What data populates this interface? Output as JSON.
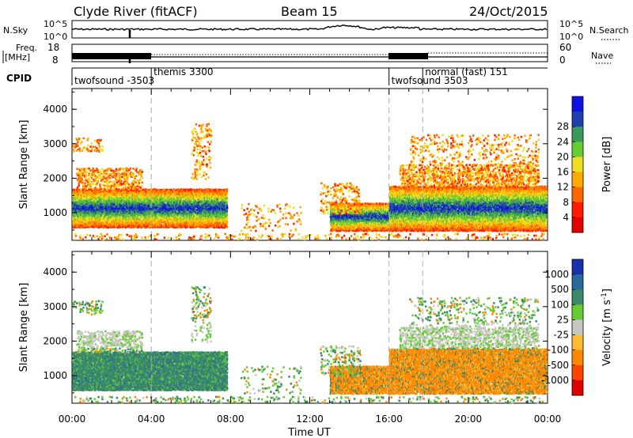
{
  "header": {
    "station": "Clyde River (fitACF)",
    "beam": "Beam 15",
    "date": "24/Oct/2015"
  },
  "top_strips": {
    "nsky_label": "N.Sky",
    "nsearch_label": "N.Search",
    "freq_label_1": "Freq.",
    "freq_label_2": "[MHz]",
    "nave_label": "Nave",
    "cpid_label": "CPID",
    "nsky_ticks_left": [
      "10^5",
      "10^0"
    ],
    "nsky_ticks_right": [
      "10^5",
      "10^0"
    ],
    "freq_ticks_left": [
      "18",
      "8"
    ],
    "nave_ticks_right": [
      "60",
      "0"
    ]
  },
  "cpid_segments": [
    {
      "label": "twofsound -3503",
      "start_hr": 0.0,
      "end_hr": 4.0
    },
    {
      "label": "themis 3300",
      "start_hr": 4.0,
      "end_hr": 16.0
    },
    {
      "label": "twofsound 3503",
      "start_hr": 16.0,
      "end_hr": 17.7
    },
    {
      "label": "normal (fast) 151",
      "start_hr": 17.7,
      "end_hr": 24.0
    }
  ],
  "chart_data": [
    {
      "type": "heatmap",
      "name": "power-panel",
      "ylabel": "Slant Range [km]",
      "xlabel": "",
      "x_range_hr": [
        0,
        24
      ],
      "ylim": [
        200,
        4600
      ],
      "y_ticks": [
        "1000",
        "2000",
        "3000",
        "4000"
      ],
      "colorbar_label": "Power [dB]",
      "colorbar_ticks": [
        "4",
        "8",
        "12",
        "16",
        "20",
        "24",
        "28"
      ],
      "colorbar_colors": [
        "#1010e0",
        "#2040b0",
        "#3a9a5a",
        "#66cc33",
        "#eedd22",
        "#ffaa00",
        "#ff6600",
        "#ff1a00",
        "#e00000"
      ],
      "dashed_lines_hr": [
        4.0,
        16.0,
        17.7
      ]
    },
    {
      "type": "heatmap",
      "name": "velocity-panel",
      "ylabel": "Slant Range [km]",
      "xlabel": "Time UT",
      "x_range_hr": [
        0,
        24
      ],
      "x_ticks": [
        "00:00",
        "04:00",
        "08:00",
        "12:00",
        "16:00",
        "20:00",
        "00:00"
      ],
      "ylim": [
        200,
        4600
      ],
      "y_ticks": [
        "1000",
        "2000",
        "3000",
        "4000"
      ],
      "colorbar_label": "Velocity [m s",
      "colorbar_label_sup": "-1",
      "colorbar_label_end": "]",
      "colorbar_ticks": [
        "1000",
        "500",
        "100",
        "25",
        "-25",
        "-100",
        "-500",
        "-1000"
      ],
      "colorbar_colors": [
        "#1830b0",
        "#2a6a9a",
        "#3a8a6a",
        "#66cc33",
        "#c8c8c0",
        "#ffbb33",
        "#ff8800",
        "#ff4400",
        "#e00000"
      ],
      "dashed_lines_hr": [
        4.0,
        16.0,
        17.7
      ]
    }
  ]
}
